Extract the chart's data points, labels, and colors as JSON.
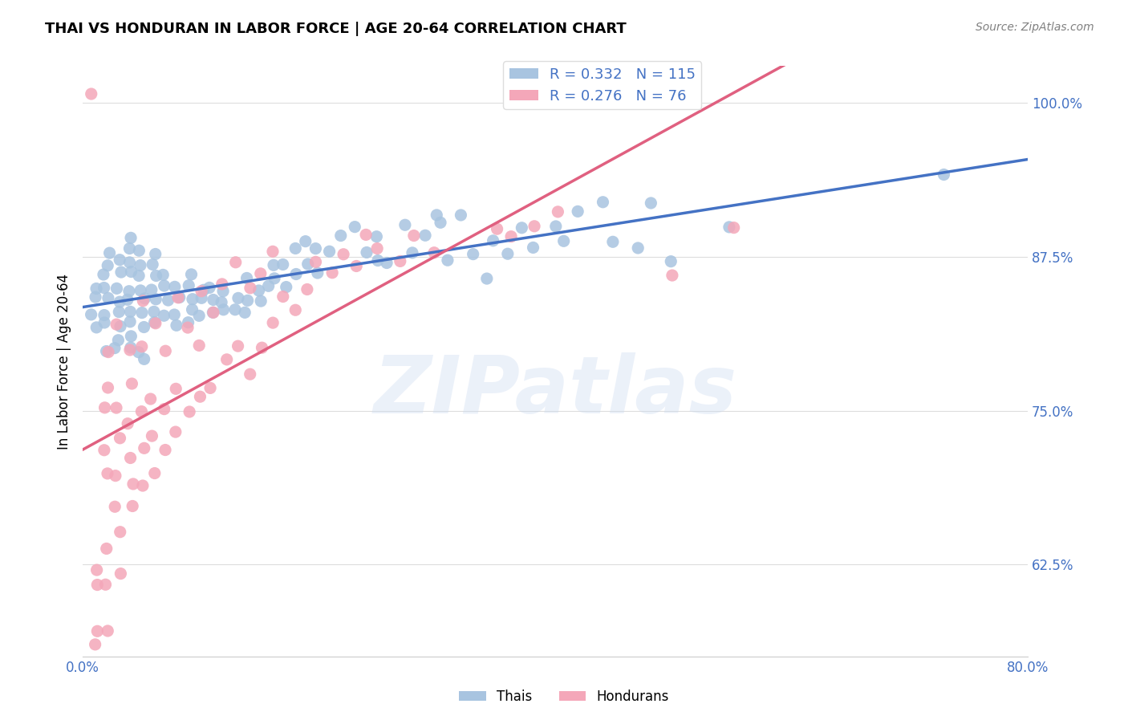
{
  "title": "THAI VS HONDURAN IN LABOR FORCE | AGE 20-64 CORRELATION CHART",
  "source": "Source: ZipAtlas.com",
  "xlabel": "",
  "ylabel": "In Labor Force | Age 20-64",
  "xlim": [
    0.0,
    0.8
  ],
  "ylim": [
    0.55,
    1.03
  ],
  "yticks": [
    0.625,
    0.75,
    0.875,
    1.0
  ],
  "ytick_labels": [
    "62.5%",
    "75.0%",
    "87.5%",
    "100.0%"
  ],
  "xticks": [
    0.0,
    0.1,
    0.2,
    0.3,
    0.4,
    0.5,
    0.6,
    0.7,
    0.8
  ],
  "xtick_labels": [
    "0.0%",
    "",
    "",
    "",
    "",
    "",
    "",
    "",
    "80.0%"
  ],
  "blue_color": "#a8c4e0",
  "pink_color": "#f4a7b9",
  "blue_line_color": "#4472c4",
  "pink_line_color": "#e06080",
  "blue_dash_color": "#b0c8e8",
  "axis_color": "#4472c4",
  "grid_color": "#dddddd",
  "watermark": "ZIPatlas",
  "legend_R_blue": "0.332",
  "legend_N_blue": "115",
  "legend_R_pink": "0.276",
  "legend_N_pink": "76",
  "blue_scatter": {
    "x": [
      0.01,
      0.01,
      0.01,
      0.01,
      0.02,
      0.02,
      0.02,
      0.02,
      0.02,
      0.02,
      0.02,
      0.02,
      0.03,
      0.03,
      0.03,
      0.03,
      0.03,
      0.03,
      0.03,
      0.03,
      0.04,
      0.04,
      0.04,
      0.04,
      0.04,
      0.04,
      0.04,
      0.04,
      0.04,
      0.04,
      0.05,
      0.05,
      0.05,
      0.05,
      0.05,
      0.05,
      0.05,
      0.05,
      0.05,
      0.06,
      0.06,
      0.06,
      0.06,
      0.06,
      0.06,
      0.06,
      0.07,
      0.07,
      0.07,
      0.07,
      0.08,
      0.08,
      0.08,
      0.08,
      0.09,
      0.09,
      0.09,
      0.09,
      0.09,
      0.1,
      0.1,
      0.1,
      0.11,
      0.11,
      0.11,
      0.12,
      0.12,
      0.12,
      0.13,
      0.13,
      0.14,
      0.14,
      0.14,
      0.15,
      0.15,
      0.16,
      0.16,
      0.16,
      0.17,
      0.17,
      0.18,
      0.18,
      0.19,
      0.19,
      0.2,
      0.2,
      0.21,
      0.22,
      0.23,
      0.24,
      0.25,
      0.25,
      0.26,
      0.27,
      0.28,
      0.29,
      0.3,
      0.3,
      0.31,
      0.32,
      0.33,
      0.34,
      0.35,
      0.36,
      0.37,
      0.38,
      0.4,
      0.41,
      0.42,
      0.44,
      0.45,
      0.47,
      0.48,
      0.5,
      0.55,
      0.73
    ],
    "y": [
      0.82,
      0.83,
      0.84,
      0.85,
      0.8,
      0.82,
      0.83,
      0.84,
      0.85,
      0.86,
      0.87,
      0.88,
      0.8,
      0.81,
      0.82,
      0.83,
      0.84,
      0.85,
      0.86,
      0.87,
      0.83,
      0.84,
      0.85,
      0.86,
      0.87,
      0.88,
      0.89,
      0.82,
      0.81,
      0.8,
      0.82,
      0.83,
      0.84,
      0.85,
      0.86,
      0.87,
      0.88,
      0.79,
      0.8,
      0.82,
      0.83,
      0.84,
      0.85,
      0.86,
      0.87,
      0.88,
      0.83,
      0.84,
      0.85,
      0.86,
      0.82,
      0.83,
      0.84,
      0.85,
      0.82,
      0.83,
      0.84,
      0.85,
      0.86,
      0.83,
      0.84,
      0.85,
      0.83,
      0.84,
      0.85,
      0.83,
      0.84,
      0.85,
      0.83,
      0.84,
      0.83,
      0.84,
      0.86,
      0.84,
      0.85,
      0.85,
      0.86,
      0.87,
      0.85,
      0.87,
      0.86,
      0.88,
      0.87,
      0.89,
      0.86,
      0.88,
      0.88,
      0.89,
      0.9,
      0.88,
      0.87,
      0.89,
      0.87,
      0.9,
      0.88,
      0.89,
      0.9,
      0.91,
      0.87,
      0.91,
      0.88,
      0.86,
      0.89,
      0.88,
      0.9,
      0.88,
      0.9,
      0.89,
      0.91,
      0.92,
      0.89,
      0.88,
      0.92,
      0.87,
      0.9,
      0.94
    ]
  },
  "pink_scatter": {
    "x": [
      0.01,
      0.01,
      0.01,
      0.01,
      0.01,
      0.02,
      0.02,
      0.02,
      0.02,
      0.02,
      0.02,
      0.02,
      0.02,
      0.03,
      0.03,
      0.03,
      0.03,
      0.03,
      0.03,
      0.03,
      0.04,
      0.04,
      0.04,
      0.04,
      0.04,
      0.04,
      0.05,
      0.05,
      0.05,
      0.05,
      0.05,
      0.06,
      0.06,
      0.06,
      0.06,
      0.07,
      0.07,
      0.07,
      0.08,
      0.08,
      0.08,
      0.09,
      0.09,
      0.1,
      0.1,
      0.1,
      0.11,
      0.11,
      0.12,
      0.12,
      0.13,
      0.13,
      0.14,
      0.14,
      0.15,
      0.15,
      0.16,
      0.16,
      0.17,
      0.18,
      0.19,
      0.2,
      0.21,
      0.22,
      0.23,
      0.24,
      0.25,
      0.27,
      0.28,
      0.3,
      0.35,
      0.36,
      0.38,
      0.4,
      0.5,
      0.55
    ],
    "y": [
      0.56,
      0.57,
      0.61,
      0.62,
      1.01,
      0.57,
      0.61,
      0.64,
      0.7,
      0.72,
      0.75,
      0.77,
      0.8,
      0.62,
      0.65,
      0.67,
      0.7,
      0.73,
      0.75,
      0.82,
      0.67,
      0.69,
      0.71,
      0.74,
      0.77,
      0.8,
      0.69,
      0.72,
      0.75,
      0.8,
      0.84,
      0.7,
      0.73,
      0.76,
      0.82,
      0.72,
      0.75,
      0.8,
      0.73,
      0.77,
      0.84,
      0.75,
      0.82,
      0.76,
      0.8,
      0.85,
      0.77,
      0.83,
      0.79,
      0.85,
      0.8,
      0.87,
      0.78,
      0.85,
      0.8,
      0.86,
      0.82,
      0.88,
      0.84,
      0.83,
      0.85,
      0.87,
      0.86,
      0.88,
      0.87,
      0.89,
      0.88,
      0.87,
      0.89,
      0.88,
      0.9,
      0.89,
      0.9,
      0.91,
      0.86,
      0.9
    ]
  }
}
